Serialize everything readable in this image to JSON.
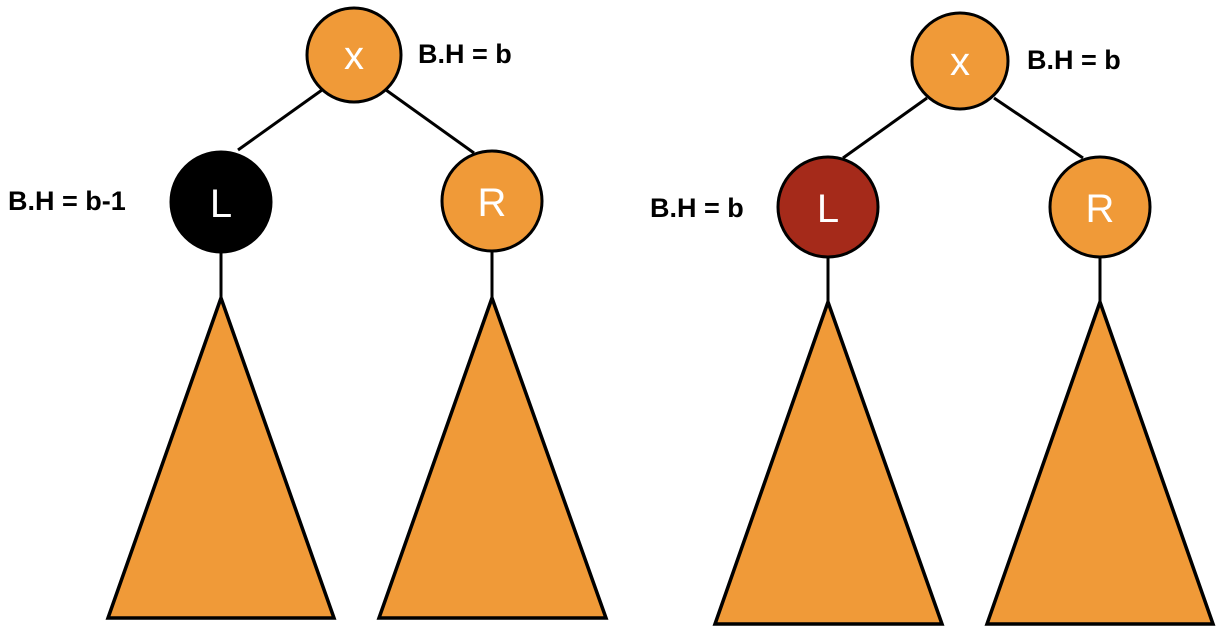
{
  "colors": {
    "orange": "#F09A38",
    "black": "#000000",
    "red": "#A52A1A",
    "stroke": "#000000",
    "node_text": "#FFFFFF"
  },
  "left_tree": {
    "root": {
      "label": "x",
      "bh": "B.H = b",
      "color": "orange"
    },
    "left_child": {
      "label": "L",
      "bh": "B.H = b-1",
      "color": "black"
    },
    "right_child": {
      "label": "R",
      "color": "orange"
    }
  },
  "right_tree": {
    "root": {
      "label": "x",
      "bh": "B.H = b",
      "color": "orange"
    },
    "left_child": {
      "label": "L",
      "bh": "B.H = b",
      "color": "red"
    },
    "right_child": {
      "label": "R",
      "color": "orange"
    }
  }
}
